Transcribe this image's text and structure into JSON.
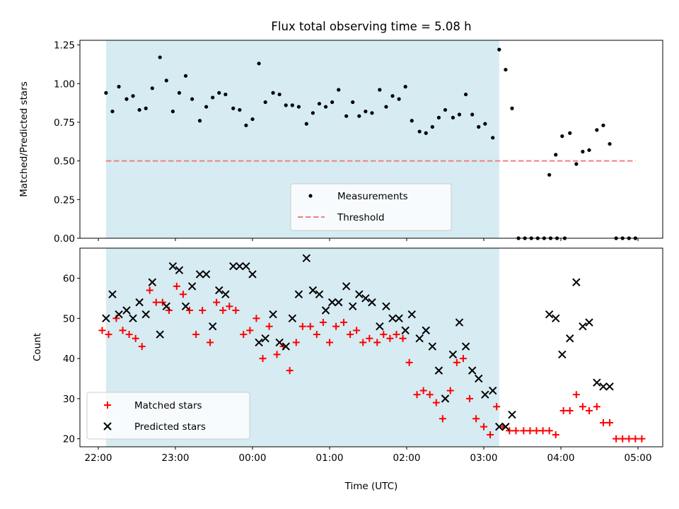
{
  "chart_data": [
    {
      "type": "scatter",
      "title": "Flux total observing time = 5.08 h",
      "ylabel": "Matched/Predicted stars",
      "ylim": [
        0,
        1.28
      ],
      "yticks": [
        0,
        0.25,
        0.5,
        0.75,
        1.0,
        1.25
      ],
      "ytick_labels": [
        "0.00",
        "0.25",
        "0.50",
        "0.75",
        "1.00",
        "1.25"
      ],
      "shaded_interval_utc": [
        "22:06",
        "03:12"
      ],
      "threshold": 0.5,
      "legend": [
        "Measurements",
        "Threshold"
      ],
      "legend_position": "lower-center",
      "series": [
        {
          "name": "Measurements",
          "points": [
            [
              "22:06",
              0.94
            ],
            [
              "22:11",
              0.82
            ],
            [
              "22:16",
              0.98
            ],
            [
              "22:22",
              0.9
            ],
            [
              "22:27",
              0.92
            ],
            [
              "22:32",
              0.83
            ],
            [
              "22:37",
              0.84
            ],
            [
              "22:42",
              0.97
            ],
            [
              "22:48",
              1.17
            ],
            [
              "22:53",
              1.02
            ],
            [
              "22:58",
              0.82
            ],
            [
              "23:03",
              0.94
            ],
            [
              "23:08",
              1.05
            ],
            [
              "23:13",
              0.9
            ],
            [
              "23:19",
              0.76
            ],
            [
              "23:24",
              0.85
            ],
            [
              "23:29",
              0.91
            ],
            [
              "23:34",
              0.94
            ],
            [
              "23:39",
              0.93
            ],
            [
              "23:45",
              0.84
            ],
            [
              "23:50",
              0.83
            ],
            [
              "23:55",
              0.73
            ],
            [
              "00:00",
              0.77
            ],
            [
              "00:05",
              1.13
            ],
            [
              "00:10",
              0.88
            ],
            [
              "00:16",
              0.94
            ],
            [
              "00:21",
              0.93
            ],
            [
              "00:26",
              0.86
            ],
            [
              "00:31",
              0.86
            ],
            [
              "00:36",
              0.85
            ],
            [
              "00:42",
              0.74
            ],
            [
              "00:47",
              0.81
            ],
            [
              "00:52",
              0.87
            ],
            [
              "00:57",
              0.85
            ],
            [
              "01:02",
              0.88
            ],
            [
              "01:07",
              0.96
            ],
            [
              "01:13",
              0.79
            ],
            [
              "01:18",
              0.88
            ],
            [
              "01:23",
              0.79
            ],
            [
              "01:28",
              0.82
            ],
            [
              "01:33",
              0.81
            ],
            [
              "01:39",
              0.96
            ],
            [
              "01:44",
              0.85
            ],
            [
              "01:49",
              0.92
            ],
            [
              "01:54",
              0.9
            ],
            [
              "01:59",
              0.98
            ],
            [
              "02:04",
              0.76
            ],
            [
              "02:10",
              0.69
            ],
            [
              "02:15",
              0.68
            ],
            [
              "02:20",
              0.72
            ],
            [
              "02:25",
              0.78
            ],
            [
              "02:30",
              0.83
            ],
            [
              "02:36",
              0.78
            ],
            [
              "02:41",
              0.8
            ],
            [
              "02:46",
              0.93
            ],
            [
              "02:51",
              0.8
            ],
            [
              "02:56",
              0.72
            ],
            [
              "03:01",
              0.74
            ],
            [
              "03:07",
              0.65
            ],
            [
              "03:12",
              1.22
            ],
            [
              "03:17",
              1.09
            ],
            [
              "03:22",
              0.84
            ],
            [
              "03:27",
              0.0
            ],
            [
              "03:32",
              0.0
            ],
            [
              "03:37",
              0.0
            ],
            [
              "03:42",
              0.0
            ],
            [
              "03:47",
              0.0
            ],
            [
              "03:52",
              0.0
            ],
            [
              "03:57",
              0.0
            ],
            [
              "04:03",
              0.0
            ],
            [
              "03:51",
              0.41
            ],
            [
              "03:56",
              0.54
            ],
            [
              "04:01",
              0.66
            ],
            [
              "04:07",
              0.68
            ],
            [
              "04:12",
              0.48
            ],
            [
              "04:17",
              0.56
            ],
            [
              "04:22",
              0.57
            ],
            [
              "04:28",
              0.7
            ],
            [
              "04:33",
              0.73
            ],
            [
              "04:38",
              0.61
            ],
            [
              "04:43",
              0.0
            ],
            [
              "04:48",
              0.0
            ],
            [
              "04:53",
              0.0
            ],
            [
              "04:58",
              0.0
            ]
          ]
        },
        {
          "name": "Threshold",
          "x": [
            "22:06",
            "04:58"
          ],
          "y": [
            0.5,
            0.5
          ]
        }
      ]
    },
    {
      "type": "scatter",
      "xlabel": "Time (UTC)",
      "ylabel": "Count",
      "ylim": [
        18,
        67.5
      ],
      "yticks": [
        20,
        30,
        40,
        50,
        60
      ],
      "ytick_labels": [
        "20",
        "30",
        "40",
        "50",
        "60"
      ],
      "xticks": [
        "22:00",
        "23:00",
        "00:00",
        "01:00",
        "02:00",
        "03:00",
        "04:00",
        "05:00"
      ],
      "shaded_interval_utc": [
        "22:06",
        "03:12"
      ],
      "legend": [
        "Matched stars",
        "Predicted stars"
      ],
      "legend_position": "lower-left",
      "series": [
        {
          "name": "Matched stars",
          "points": [
            [
              "22:03",
              47
            ],
            [
              "22:08",
              46
            ],
            [
              "22:14",
              50
            ],
            [
              "22:19",
              47
            ],
            [
              "22:24",
              46
            ],
            [
              "22:29",
              45
            ],
            [
              "22:34",
              43
            ],
            [
              "22:40",
              57
            ],
            [
              "22:45",
              54
            ],
            [
              "22:50",
              54
            ],
            [
              "22:55",
              52
            ],
            [
              "23:01",
              58
            ],
            [
              "23:06",
              56
            ],
            [
              "23:11",
              52
            ],
            [
              "23:16",
              46
            ],
            [
              "23:21",
              52
            ],
            [
              "23:27",
              44
            ],
            [
              "23:32",
              54
            ],
            [
              "23:37",
              52
            ],
            [
              "23:42",
              53
            ],
            [
              "23:47",
              52
            ],
            [
              "23:53",
              46
            ],
            [
              "23:58",
              47
            ],
            [
              "00:03",
              50
            ],
            [
              "00:08",
              40
            ],
            [
              "00:13",
              48
            ],
            [
              "00:19",
              41
            ],
            [
              "00:24",
              43
            ],
            [
              "00:29",
              37
            ],
            [
              "00:34",
              44
            ],
            [
              "00:39",
              48
            ],
            [
              "00:45",
              48
            ],
            [
              "00:50",
              46
            ],
            [
              "00:55",
              49
            ],
            [
              "01:00",
              44
            ],
            [
              "01:05",
              48
            ],
            [
              "01:11",
              49
            ],
            [
              "01:16",
              46
            ],
            [
              "01:21",
              47
            ],
            [
              "01:26",
              44
            ],
            [
              "01:31",
              45
            ],
            [
              "01:37",
              44
            ],
            [
              "01:42",
              46
            ],
            [
              "01:47",
              45
            ],
            [
              "01:52",
              46
            ],
            [
              "01:57",
              45
            ],
            [
              "02:02",
              39
            ],
            [
              "02:08",
              31
            ],
            [
              "02:13",
              32
            ],
            [
              "02:18",
              31
            ],
            [
              "02:23",
              29
            ],
            [
              "02:28",
              25
            ],
            [
              "02:34",
              32
            ],
            [
              "02:39",
              39
            ],
            [
              "02:44",
              40
            ],
            [
              "02:49",
              30
            ],
            [
              "02:54",
              25
            ],
            [
              "03:00",
              23
            ],
            [
              "03:05",
              21
            ],
            [
              "03:10",
              28
            ],
            [
              "03:15",
              23
            ],
            [
              "03:20",
              22
            ],
            [
              "03:25",
              22
            ],
            [
              "03:31",
              22
            ],
            [
              "03:36",
              22
            ],
            [
              "03:41",
              22
            ],
            [
              "03:46",
              22
            ],
            [
              "03:51",
              22
            ],
            [
              "03:56",
              21
            ],
            [
              "04:02",
              27
            ],
            [
              "04:07",
              27
            ],
            [
              "04:12",
              31
            ],
            [
              "04:17",
              28
            ],
            [
              "04:22",
              27
            ],
            [
              "04:28",
              28
            ],
            [
              "04:33",
              24
            ],
            [
              "04:38",
              24
            ],
            [
              "04:43",
              20
            ],
            [
              "04:48",
              20
            ],
            [
              "04:53",
              20
            ],
            [
              "04:58",
              20
            ],
            [
              "05:03",
              20
            ]
          ]
        },
        {
          "name": "Predicted stars",
          "points": [
            [
              "22:06",
              50
            ],
            [
              "22:11",
              56
            ],
            [
              "22:16",
              51
            ],
            [
              "22:22",
              52
            ],
            [
              "22:27",
              50
            ],
            [
              "22:32",
              54
            ],
            [
              "22:37",
              51
            ],
            [
              "22:42",
              59
            ],
            [
              "22:48",
              46
            ],
            [
              "22:53",
              53
            ],
            [
              "22:58",
              63
            ],
            [
              "23:03",
              62
            ],
            [
              "23:08",
              53
            ],
            [
              "23:13",
              58
            ],
            [
              "23:19",
              61
            ],
            [
              "23:24",
              61
            ],
            [
              "23:29",
              48
            ],
            [
              "23:34",
              57
            ],
            [
              "23:39",
              56
            ],
            [
              "23:45",
              63
            ],
            [
              "23:50",
              63
            ],
            [
              "23:55",
              63
            ],
            [
              "00:00",
              61
            ],
            [
              "00:05",
              44
            ],
            [
              "00:10",
              45
            ],
            [
              "00:16",
              51
            ],
            [
              "00:21",
              44
            ],
            [
              "00:26",
              43
            ],
            [
              "00:31",
              50
            ],
            [
              "00:36",
              56
            ],
            [
              "00:42",
              65
            ],
            [
              "00:47",
              57
            ],
            [
              "00:52",
              56
            ],
            [
              "00:57",
              52
            ],
            [
              "01:02",
              54
            ],
            [
              "01:07",
              54
            ],
            [
              "01:13",
              58
            ],
            [
              "01:18",
              53
            ],
            [
              "01:23",
              56
            ],
            [
              "01:28",
              55
            ],
            [
              "01:33",
              54
            ],
            [
              "01:39",
              48
            ],
            [
              "01:44",
              53
            ],
            [
              "01:49",
              50
            ],
            [
              "01:54",
              50
            ],
            [
              "01:59",
              47
            ],
            [
              "02:04",
              51
            ],
            [
              "02:10",
              45
            ],
            [
              "02:15",
              47
            ],
            [
              "02:20",
              43
            ],
            [
              "02:25",
              37
            ],
            [
              "02:30",
              30
            ],
            [
              "02:36",
              41
            ],
            [
              "02:41",
              49
            ],
            [
              "02:46",
              43
            ],
            [
              "02:51",
              37
            ],
            [
              "02:56",
              35
            ],
            [
              "03:01",
              31
            ],
            [
              "03:07",
              32
            ],
            [
              "03:12",
              23
            ],
            [
              "03:17",
              23
            ],
            [
              "03:22",
              26
            ],
            [
              "03:51",
              51
            ],
            [
              "03:56",
              50
            ],
            [
              "04:01",
              41
            ],
            [
              "04:07",
              45
            ],
            [
              "04:12",
              59
            ],
            [
              "04:17",
              48
            ],
            [
              "04:22",
              49
            ],
            [
              "04:28",
              34
            ],
            [
              "04:33",
              33
            ],
            [
              "04:38",
              33
            ]
          ]
        }
      ]
    }
  ]
}
